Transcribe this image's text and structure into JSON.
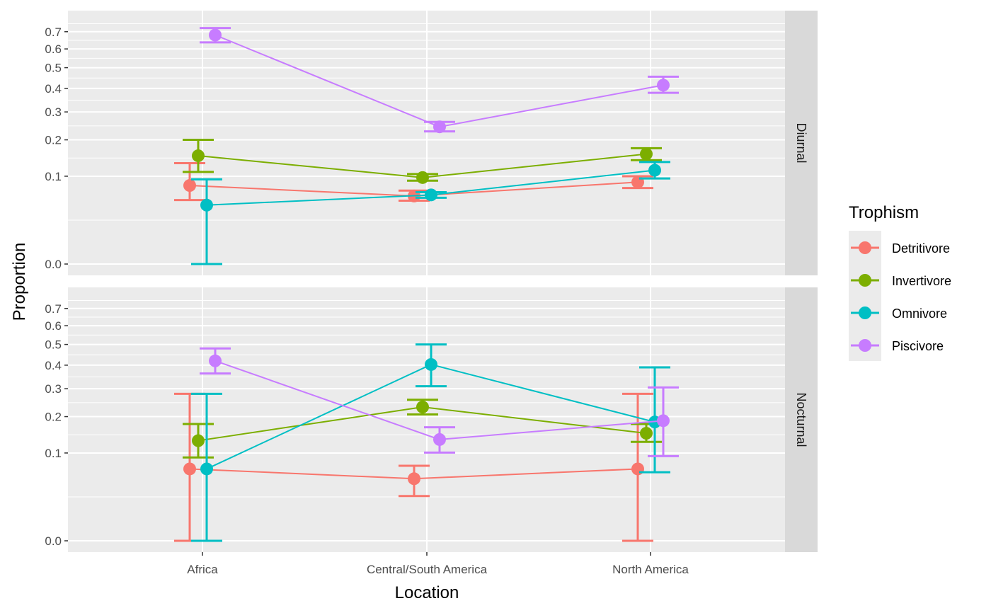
{
  "chart_data": {
    "type": "line",
    "xlabel": "Location",
    "ylabel": "Proportion",
    "categories": [
      "Africa",
      "Central/South America",
      "North America"
    ],
    "y_scale": "sqrt",
    "yticks": [
      0.0,
      0.1,
      0.2,
      0.3,
      0.4,
      0.5,
      0.6,
      0.7
    ],
    "ytick_labels": [
      "0.0",
      "0.1",
      "0.2",
      "0.3",
      "0.4",
      "0.5",
      "0.6",
      "0.7"
    ],
    "ylim": [
      0,
      0.76
    ],
    "grid": true,
    "legend": {
      "title": "Trophism",
      "position": "right",
      "entries": [
        "Detritivore",
        "Invertivore",
        "Omnivore",
        "Piscivore"
      ]
    },
    "colors": {
      "Detritivore": "#F8766D",
      "Invertivore": "#7CAE00",
      "Omnivore": "#00BFC4",
      "Piscivore": "#C77CFF"
    },
    "facets": [
      {
        "label": "Diurnal",
        "series": [
          {
            "name": "Detritivore",
            "values": [
              0.08,
              0.06,
              0.087
            ],
            "lower": [
              0.053,
              0.052,
              0.075
            ],
            "upper": [
              0.132,
              0.07,
              0.1
            ]
          },
          {
            "name": "Invertivore",
            "values": [
              0.152,
              0.097,
              0.157
            ],
            "lower": [
              0.11,
              0.09,
              0.14
            ],
            "upper": [
              0.2,
              0.105,
              0.174
            ]
          },
          {
            "name": "Omnivore",
            "values": [
              0.045,
              0.062,
              0.114
            ],
            "lower": [
              0.0,
              0.057,
              0.095
            ],
            "upper": [
              0.093,
              0.067,
              0.135
            ]
          },
          {
            "name": "Piscivore",
            "values": [
              0.68,
              0.244,
              0.415
            ],
            "lower": [
              0.637,
              0.228,
              0.38
            ],
            "upper": [
              0.722,
              0.262,
              0.455
            ]
          }
        ]
      },
      {
        "label": "Nocturnal",
        "series": [
          {
            "name": "Detritivore",
            "values": [
              0.067,
              0.05,
              0.067
            ],
            "lower": [
              0.0,
              0.026,
              0.0
            ],
            "upper": [
              0.28,
              0.073,
              0.28
            ]
          },
          {
            "name": "Invertivore",
            "values": [
              0.13,
              0.232,
              0.15
            ],
            "lower": [
              0.09,
              0.207,
              0.127
            ],
            "upper": [
              0.177,
              0.258,
              0.177
            ]
          },
          {
            "name": "Omnivore",
            "values": [
              0.067,
              0.403,
              0.183
            ],
            "lower": [
              0.0,
              0.31,
              0.061
            ],
            "upper": [
              0.28,
              0.5,
              0.39
            ]
          },
          {
            "name": "Piscivore",
            "values": [
              0.42,
              0.133,
              0.187
            ],
            "lower": [
              0.363,
              0.101,
              0.093
            ],
            "upper": [
              0.48,
              0.167,
              0.305
            ]
          }
        ]
      }
    ]
  }
}
